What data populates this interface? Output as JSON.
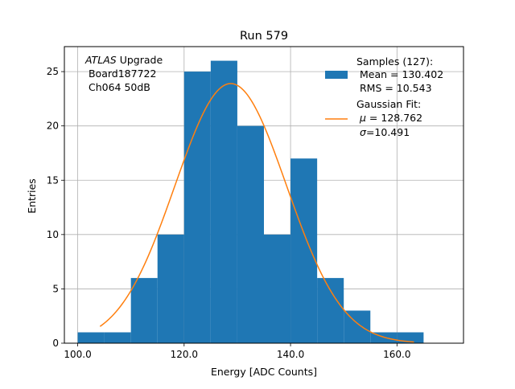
{
  "chart_data": {
    "type": "bar",
    "title": "Run 579",
    "xlabel": "Energy [ADC Counts]",
    "ylabel": "Entries",
    "xlim": [
      97.5,
      172.5
    ],
    "ylim": [
      0,
      27.3
    ],
    "grid": true,
    "xticks": [
      100,
      120,
      140,
      160
    ],
    "xtick_labels": [
      "100.0",
      "120.0",
      "140.0",
      "160.0"
    ],
    "yticks": [
      0,
      5,
      10,
      15,
      20,
      25
    ],
    "ytick_labels": [
      "0",
      "5",
      "10",
      "15",
      "20",
      "25"
    ],
    "histogram": {
      "name": "Samples (127):",
      "color": "#1f77b4",
      "bin_edges": [
        100,
        105,
        110,
        115,
        120,
        125,
        130,
        135,
        140,
        145,
        150,
        155,
        160,
        165
      ],
      "counts": [
        1,
        1,
        6,
        10,
        25,
        26,
        20,
        10,
        17,
        6,
        3,
        1,
        1
      ]
    },
    "fit": {
      "name": "Gaussian Fit:",
      "color": "#ff7f0e",
      "mu": 128.762,
      "sigma": 10.491,
      "amplitude": 23.9,
      "x_range": [
        104.2,
        163.2
      ]
    },
    "annotation": {
      "italic": "ATLAS",
      "line1_rest": " Upgrade",
      "line2": " Board187722",
      "line3": " Ch064 50dB"
    },
    "legend": {
      "placement": "top-right",
      "samples_title": "Samples (127):",
      "samples_mean": " Mean = 130.402",
      "samples_rms": " RMS = 10.543",
      "fit_title": "Gaussian Fit:",
      "fit_mu_symbol": "μ",
      "fit_mu_rest": " = 128.762",
      "fit_sigma_symbol": "σ",
      "fit_sigma_rest": "=10.491"
    }
  }
}
